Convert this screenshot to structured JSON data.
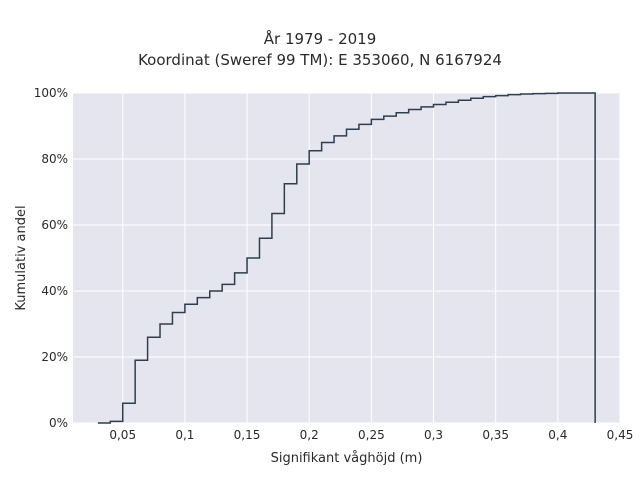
{
  "chart_data": {
    "type": "line",
    "title_lines": [
      "År 1979 - 2019",
      "Koordinat (Sweref 99 TM): E 353060, N 6167924"
    ],
    "xlabel": "Signifikant våghöjd (m)",
    "ylabel": "Kumulativ andel",
    "xlim": [
      0.01,
      0.45
    ],
    "ylim": [
      0,
      1.0
    ],
    "x_ticks": [
      0.05,
      0.1,
      0.15,
      0.2,
      0.25,
      0.3,
      0.35,
      0.4,
      0.45
    ],
    "x_tick_labels": [
      "0,05",
      "0,1",
      "0,15",
      "0,2",
      "0,25",
      "0,3",
      "0,35",
      "0,4",
      "0,45"
    ],
    "y_ticks": [
      0,
      0.2,
      0.4,
      0.6,
      0.8,
      1.0
    ],
    "y_tick_labels": [
      "0%",
      "20%",
      "40%",
      "60%",
      "80%",
      "100%"
    ],
    "grid": true,
    "line_shape": "step",
    "line_color": "#2f3e4e",
    "background_color": "#e5e5f0",
    "grid_color": "#ffffff",
    "bin_edges": [
      0.03,
      0.04,
      0.05,
      0.06,
      0.07,
      0.08,
      0.09,
      0.1,
      0.11,
      0.12,
      0.13,
      0.14,
      0.15,
      0.16,
      0.17,
      0.18,
      0.19,
      0.2,
      0.21,
      0.22,
      0.23,
      0.24,
      0.25,
      0.26,
      0.27,
      0.28,
      0.29,
      0.3,
      0.31,
      0.32,
      0.33,
      0.34,
      0.35,
      0.36,
      0.37,
      0.38,
      0.39,
      0.4,
      0.41,
      0.42,
      0.43
    ],
    "cumulative": [
      0.0,
      0.005,
      0.06,
      0.19,
      0.26,
      0.3,
      0.335,
      0.36,
      0.38,
      0.4,
      0.42,
      0.455,
      0.5,
      0.56,
      0.635,
      0.725,
      0.785,
      0.825,
      0.85,
      0.87,
      0.89,
      0.905,
      0.92,
      0.93,
      0.94,
      0.95,
      0.958,
      0.965,
      0.972,
      0.978,
      0.984,
      0.989,
      0.992,
      0.995,
      0.997,
      0.998,
      0.999,
      1.0,
      1.0,
      1.0
    ]
  }
}
